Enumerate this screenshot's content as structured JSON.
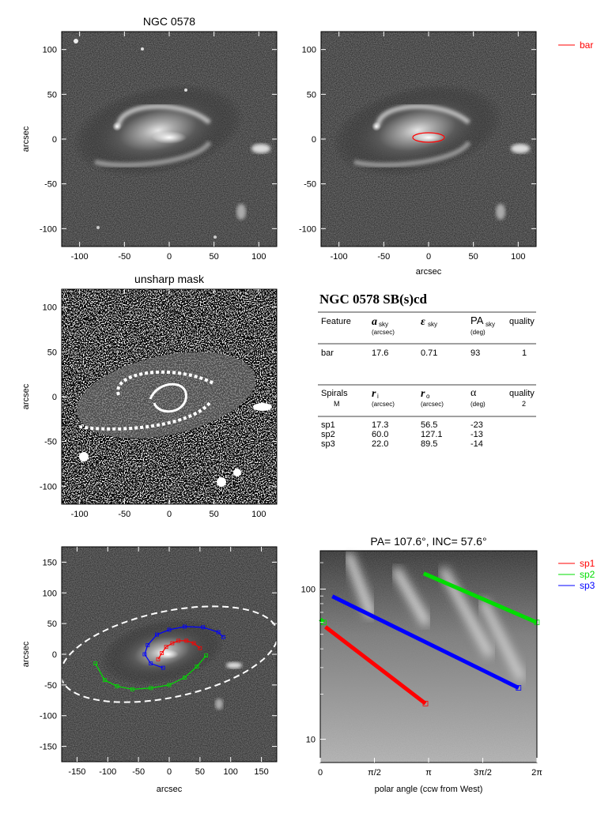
{
  "panel1": {
    "title": "NGC 0578",
    "ylabel": "arcsec",
    "xticks": [
      "-100",
      "-50",
      "0",
      "50",
      "100"
    ],
    "yticks": [
      "100",
      "50",
      "0",
      "-50",
      "-100"
    ]
  },
  "panel2": {
    "xlabel": "arcsec",
    "xticks": [
      "-100",
      "-50",
      "0",
      "50",
      "100"
    ],
    "yticks": [
      "100",
      "50",
      "0",
      "-50",
      "-100"
    ],
    "legend": [
      {
        "label": "bar",
        "color": "#ff0000"
      }
    ]
  },
  "panel3": {
    "title": "unsharp mask",
    "ylabel": "arcsec",
    "xticks": [
      "-100",
      "-50",
      "0",
      "50",
      "100"
    ],
    "yticks": [
      "100",
      "50",
      "0",
      "-50",
      "-100"
    ]
  },
  "info_table": {
    "heading": "NGC 0578  SB(s)cd",
    "bar_header": {
      "c1": "Feature",
      "c2": "a",
      "c2_sub": "sky",
      "c2_unit": "(arcsec)",
      "c3": "ε",
      "c3_sub": "sky",
      "c4": "PA",
      "c4_sub": "sky",
      "c4_unit": "(deg)",
      "c5": "quality"
    },
    "bar_row": {
      "feature": "bar",
      "a": "17.6",
      "eps": "0.71",
      "pa": "93",
      "quality": "1"
    },
    "spiral_header": {
      "c1": "Spirals",
      "c1_sub": "M",
      "c1_sub_val": "M",
      "c2": "r",
      "c2_sub": "i",
      "c2_unit": "(arcsec)",
      "c3": "r",
      "c3_sub": "o",
      "c3_unit": "(arcsec)",
      "c4": "α",
      "c4_unit": "(deg)",
      "c5": "quality",
      "c5_val": "2"
    },
    "spiral_rows": [
      {
        "name": "sp1",
        "ri": "17.3",
        "ro": "56.5",
        "alpha": "-23"
      },
      {
        "name": "sp2",
        "ri": "60.0",
        "ro": "127.1",
        "alpha": "-13"
      },
      {
        "name": "sp3",
        "ri": "22.0",
        "ro": "89.5",
        "alpha": "-14"
      }
    ]
  },
  "panel5": {
    "ylabel": "arcsec",
    "xlabel": "arcsec",
    "xticks": [
      "-150",
      "-100",
      "-50",
      "0",
      "50",
      "100",
      "150"
    ],
    "yticks": [
      "150",
      "100",
      "50",
      "0",
      "-50",
      "-100",
      "-150"
    ]
  },
  "panel6": {
    "title": "PA= 107.6°, INC=  57.6°",
    "xlabel": "polar angle (ccw from West)",
    "xticks": [
      "0",
      "π/2",
      "π",
      "3π/2",
      "2π"
    ],
    "yticks": [
      "100",
      "10"
    ],
    "legend": [
      {
        "label": "sp1",
        "color": "#ff0000"
      },
      {
        "label": "sp2",
        "color": "#00dd00"
      },
      {
        "label": "sp3",
        "color": "#0000ff"
      }
    ]
  },
  "chart_data": [
    {
      "type": "image",
      "title": "NGC 0578",
      "xlim": [
        -120,
        120
      ],
      "ylim": [
        -120,
        120
      ],
      "ylabel": "arcsec"
    },
    {
      "type": "image",
      "xlim": [
        -120,
        120
      ],
      "ylim": [
        -120,
        120
      ],
      "xlabel": "arcsec",
      "overlays": [
        {
          "name": "bar",
          "shape": "ellipse",
          "a": 17.6,
          "eps": 0.71,
          "pa": 93,
          "color": "#ff0000"
        }
      ]
    },
    {
      "type": "image",
      "title": "unsharp mask",
      "xlim": [
        -120,
        120
      ],
      "ylim": [
        -120,
        120
      ],
      "ylabel": "arcsec"
    },
    {
      "type": "table",
      "rows": [
        [
          "bar",
          "17.6",
          "0.71",
          "93",
          "1"
        ],
        [
          "sp1",
          "17.3",
          "56.5",
          "-23"
        ],
        [
          "sp2",
          "60.0",
          "127.1",
          "-13"
        ],
        [
          "sp3",
          "22.0",
          "89.5",
          "-14"
        ]
      ]
    },
    {
      "type": "image",
      "xlim": [
        -175,
        175
      ],
      "ylim": [
        -175,
        175
      ],
      "xlabel": "arcsec",
      "ylabel": "arcsec",
      "series": [
        {
          "name": "sp1",
          "color": "#ff0000",
          "x": [
            -18,
            -12,
            -5,
            5,
            15,
            28,
            40,
            50
          ],
          "y": [
            -8,
            2,
            12,
            18,
            22,
            22,
            18,
            10
          ]
        },
        {
          "name": "sp2",
          "color": "#00dd00",
          "x": [
            -120,
            -105,
            -85,
            -60,
            -30,
            0,
            25,
            45,
            60
          ],
          "y": [
            -15,
            -42,
            -52,
            -57,
            -55,
            -50,
            -38,
            -20,
            -2
          ]
        },
        {
          "name": "sp3",
          "color": "#0000ff",
          "x": [
            -10,
            -30,
            -40,
            -35,
            -20,
            0,
            25,
            55,
            80,
            88
          ],
          "y": [
            -22,
            -15,
            0,
            15,
            32,
            40,
            45,
            44,
            36,
            28
          ]
        }
      ],
      "ellipse": {
        "center": [
          0,
          0
        ],
        "a": 180,
        "b": 70,
        "angle_deg": 12,
        "style": "dashed",
        "color": "#ffffff"
      }
    },
    {
      "type": "line",
      "title": "PA= 107.6°, INC=  57.6°",
      "xlabel": "polar angle (ccw from West)",
      "xlim": [
        0,
        6.2832
      ],
      "ylim": [
        7,
        180
      ],
      "ylog": true,
      "series": [
        {
          "name": "sp1",
          "color": "#ff0000",
          "x": [
            0.15,
            3.05
          ],
          "y": [
            56,
            17.3
          ]
        },
        {
          "name": "sp2",
          "color": "#00dd00",
          "x": [
            0,
            0.1
          ],
          "y": [
            63,
            60
          ]
        },
        {
          "name": "sp2",
          "color": "#00dd00",
          "x": [
            3.0,
            6.28
          ],
          "y": [
            127.1,
            60
          ]
        },
        {
          "name": "sp3",
          "color": "#0000ff",
          "x": [
            0.35,
            5.75
          ],
          "y": [
            89.5,
            22
          ]
        }
      ]
    }
  ]
}
